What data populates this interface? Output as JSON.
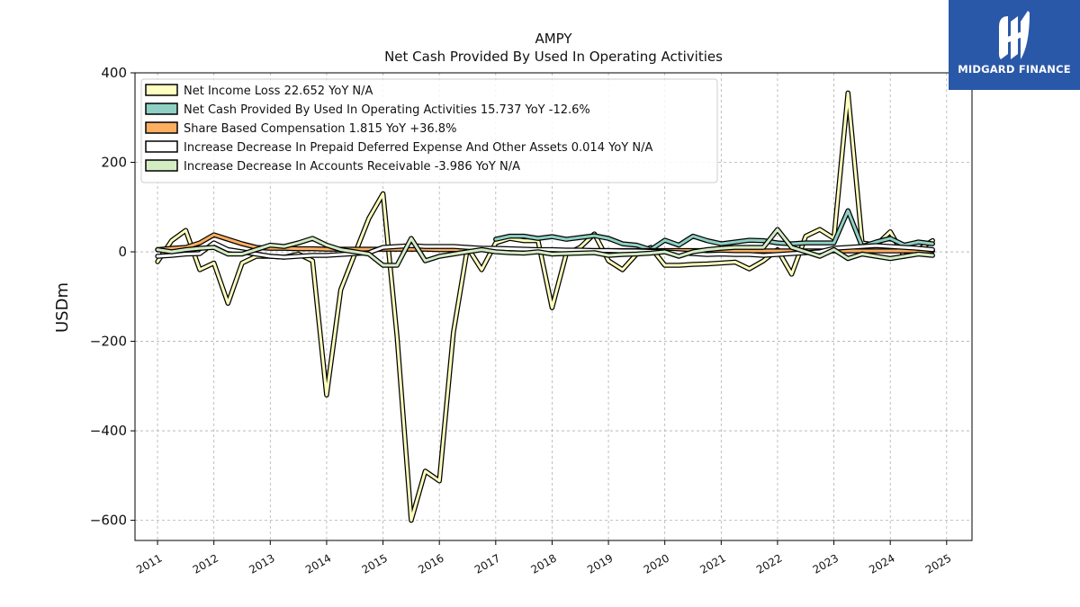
{
  "brand": {
    "name": "MIDGARD FINANCE",
    "icon": "midgard-logo-icon",
    "bg": "#2a58a8"
  },
  "chart_data": {
    "type": "line",
    "title": "AMPY",
    "subtitle": "Net Cash Provided By Used In Operating Activities",
    "xlabel": "",
    "ylabel": "USDm",
    "xlim": [
      2010.6,
      2025.45
    ],
    "ylim": [
      -645,
      400
    ],
    "yticks": [
      400,
      200,
      0,
      -200,
      -400,
      -600
    ],
    "ytick_labels": [
      "400",
      "200",
      "0",
      "−200",
      "−400",
      "−600"
    ],
    "xticks": [
      2011,
      2012,
      2013,
      2014,
      2015,
      2016,
      2017,
      2018,
      2019,
      2020,
      2021,
      2022,
      2023,
      2024,
      2025
    ],
    "xtick_labels": [
      "2011",
      "2012",
      "2013",
      "2014",
      "2015",
      "2016",
      "2017",
      "2018",
      "2019",
      "2020",
      "2021",
      "2022",
      "2023",
      "2024",
      "2025"
    ],
    "grid": true,
    "legend_position": "top-left",
    "series": [
      {
        "name": "Net Income Loss",
        "legend": "Net Income Loss  22.652 YoY N/A",
        "color": "#ffffbf",
        "x": [
          2011.0,
          2011.25,
          2011.5,
          2011.75,
          2012.0,
          2012.25,
          2012.5,
          2012.75,
          2013.0,
          2013.25,
          2013.5,
          2013.75,
          2014.0,
          2014.25,
          2014.5,
          2014.75,
          2015.0,
          2015.25,
          2015.5,
          2015.75,
          2016.0,
          2016.25,
          2016.5,
          2016.75,
          2017.0,
          2017.25,
          2017.5,
          2017.75,
          2018.0,
          2018.25,
          2018.5,
          2018.75,
          2019.0,
          2019.25,
          2019.5,
          2019.75,
          2020.0,
          2020.25,
          2020.5,
          2020.75,
          2021.0,
          2021.25,
          2021.5,
          2021.75,
          2022.0,
          2022.25,
          2022.5,
          2022.75,
          2023.0,
          2023.25,
          2023.5,
          2023.75,
          2024.0,
          2024.25,
          2024.5,
          2024.75
        ],
        "y": [
          -22,
          25,
          48,
          -40,
          -25,
          -115,
          -25,
          -10,
          -10,
          -12,
          -5,
          -20,
          -320,
          -85,
          -5,
          75,
          130,
          -190,
          -600,
          -490,
          -512,
          -180,
          10,
          -40,
          20,
          30,
          25,
          25,
          -125,
          -5,
          10,
          40,
          -20,
          -40,
          -5,
          10,
          -30,
          -30,
          -28,
          -27,
          -25,
          -23,
          -38,
          -20,
          5,
          -50,
          35,
          50,
          30,
          355,
          20,
          15,
          45,
          -10,
          5,
          25
        ]
      },
      {
        "name": "Net Cash Provided By Used In Operating Activities",
        "legend": "Net Cash Provided By Used In Operating Activities  15.737 YoY -12.6%",
        "color": "#8ed0c3",
        "x": [
          2017.0,
          2017.25,
          2017.5,
          2017.75,
          2018.0,
          2018.25,
          2018.5,
          2018.75,
          2019.0,
          2019.25,
          2019.5,
          2019.75,
          2020.0,
          2020.25,
          2020.5,
          2020.75,
          2021.0,
          2021.25,
          2021.5,
          2021.75,
          2022.0,
          2022.25,
          2022.5,
          2022.75,
          2023.0,
          2023.25,
          2023.5,
          2023.75,
          2024.0,
          2024.25,
          2024.5,
          2024.75
        ],
        "y": [
          28,
          35,
          35,
          30,
          34,
          28,
          32,
          36,
          30,
          18,
          15,
          5,
          26,
          15,
          35,
          25,
          18,
          22,
          26,
          25,
          20,
          18,
          20,
          20,
          20,
          92,
          12,
          22,
          30,
          15,
          22,
          18
        ]
      },
      {
        "name": "Share Based Compensation",
        "legend": "Share Based Compensation  1.815 YoY +36.8%",
        "color": "#fdae61",
        "x": [
          2011.0,
          2011.25,
          2011.5,
          2011.75,
          2012.0,
          2012.25,
          2012.5,
          2012.75,
          2013.0,
          2013.25,
          2013.5,
          2013.75,
          2014.0,
          2014.25,
          2014.5,
          2014.75,
          2015.0,
          2015.25,
          2015.5,
          2015.75,
          2016.0,
          2016.25,
          2016.5,
          2016.75,
          2017.0,
          2017.25,
          2017.5,
          2017.75,
          2018.0,
          2018.25,
          2018.5,
          2018.75,
          2019.0,
          2019.25,
          2019.5,
          2019.75,
          2020.0,
          2020.25,
          2020.5,
          2020.75,
          2021.0,
          2021.25,
          2021.5,
          2021.75,
          2022.0,
          2022.25,
          2022.5,
          2022.75,
          2023.0,
          2023.25,
          2023.5,
          2023.75,
          2024.0,
          2024.25,
          2024.5,
          2024.75
        ],
        "y": [
          5,
          8,
          10,
          20,
          38,
          28,
          18,
          10,
          8,
          8,
          7,
          7,
          6,
          6,
          6,
          6,
          6,
          6,
          6,
          6,
          5,
          5,
          5,
          5,
          4,
          4,
          4,
          4,
          3,
          3,
          3,
          3,
          3,
          3,
          3,
          3,
          3,
          3,
          3,
          3,
          2,
          2,
          2,
          2,
          2,
          2,
          2,
          2,
          2,
          2,
          2,
          2,
          2,
          2,
          2,
          2
        ]
      },
      {
        "name": "Increase Decrease In Prepaid Deferred Expense And Other Assets",
        "legend": "Increase Decrease In Prepaid Deferred Expense And Other Assets  0.014 YoY N/A",
        "color": "#ffffff",
        "x": [
          2011.0,
          2011.25,
          2011.5,
          2011.75,
          2012.0,
          2012.25,
          2012.5,
          2012.75,
          2013.0,
          2013.25,
          2013.5,
          2013.75,
          2014.0,
          2014.25,
          2014.5,
          2014.75,
          2015.0,
          2015.25,
          2015.5,
          2015.75,
          2016.0,
          2016.25,
          2016.5,
          2016.75,
          2017.0,
          2017.25,
          2017.5,
          2017.75,
          2018.0,
          2018.25,
          2018.5,
          2018.75,
          2019.0,
          2019.25,
          2019.5,
          2019.75,
          2020.0,
          2020.25,
          2020.5,
          2020.75,
          2021.0,
          2021.25,
          2021.5,
          2021.75,
          2022.0,
          2022.25,
          2022.5,
          2022.75,
          2023.0,
          2023.25,
          2023.5,
          2023.75,
          2024.0,
          2024.25,
          2024.5,
          2024.75
        ],
        "y": [
          -10,
          -8,
          -5,
          -4,
          20,
          5,
          0,
          -5,
          -10,
          -12,
          -10,
          -8,
          -8,
          -6,
          -4,
          -2,
          10,
          12,
          14,
          12,
          12,
          12,
          10,
          8,
          8,
          7,
          6,
          5,
          5,
          4,
          4,
          3,
          3,
          2,
          2,
          1,
          0,
          -2,
          -4,
          -6,
          -5,
          -6,
          -6,
          -8,
          -6,
          -4,
          -2,
          0,
          8,
          10,
          12,
          14,
          12,
          10,
          8,
          5
        ]
      },
      {
        "name": "Increase Decrease In Accounts Receivable",
        "legend": "Increase Decrease In Accounts Receivable  -3.986 YoY N/A",
        "color": "#d4ecc4",
        "x": [
          2011.0,
          2011.25,
          2011.5,
          2011.75,
          2012.0,
          2012.25,
          2012.5,
          2012.75,
          2013.0,
          2013.25,
          2013.5,
          2013.75,
          2014.0,
          2014.25,
          2014.5,
          2014.75,
          2015.0,
          2015.25,
          2015.5,
          2015.75,
          2016.0,
          2016.25,
          2016.5,
          2016.75,
          2017.0,
          2017.25,
          2017.5,
          2017.75,
          2018.0,
          2018.25,
          2018.5,
          2018.75,
          2019.0,
          2019.25,
          2019.5,
          2019.75,
          2020.0,
          2020.25,
          2020.5,
          2020.75,
          2021.0,
          2021.25,
          2021.5,
          2021.75,
          2022.0,
          2022.25,
          2022.5,
          2022.75,
          2023.0,
          2023.25,
          2023.5,
          2023.75,
          2024.0,
          2024.25,
          2024.5,
          2024.75
        ],
        "y": [
          5,
          0,
          5,
          8,
          10,
          -5,
          -5,
          5,
          15,
          12,
          20,
          30,
          15,
          5,
          0,
          -5,
          -30,
          -30,
          30,
          -20,
          -10,
          -5,
          0,
          5,
          0,
          -2,
          -3,
          0,
          -5,
          -4,
          -3,
          -2,
          -8,
          -6,
          -5,
          -3,
          0,
          -10,
          0,
          5,
          8,
          10,
          10,
          10,
          50,
          10,
          0,
          -10,
          5,
          -15,
          -5,
          -10,
          -15,
          -10,
          -5,
          -8
        ]
      }
    ]
  }
}
